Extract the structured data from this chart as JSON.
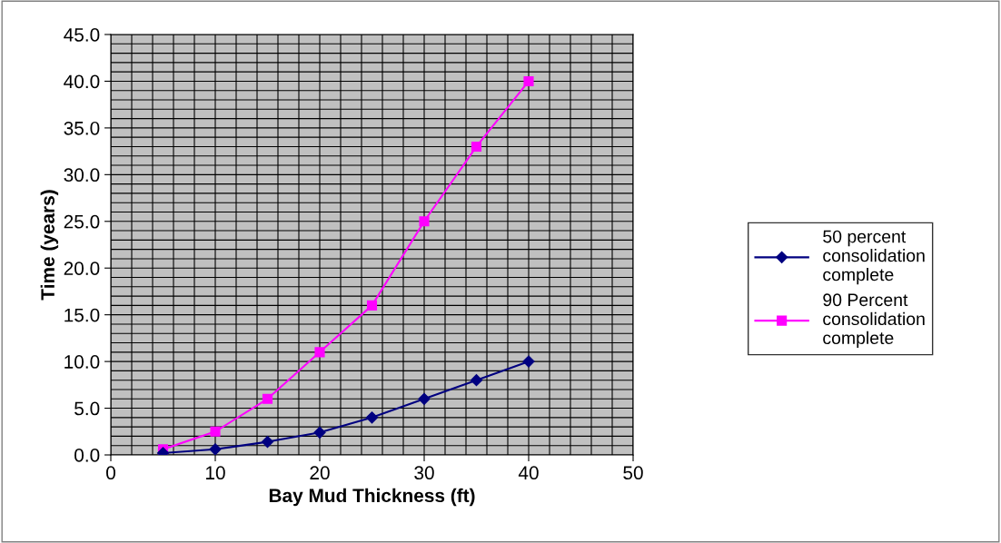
{
  "chart_data": {
    "type": "line",
    "xlabel": "Bay Mud Thickness (ft)",
    "ylabel": "Time (years)",
    "x": [
      5,
      10,
      15,
      20,
      25,
      30,
      35,
      40
    ],
    "series": [
      {
        "name": "50 percent consolidation complete",
        "color": "#000080",
        "marker": "diamond",
        "values": [
          0.2,
          0.6,
          1.4,
          2.4,
          4.0,
          6.0,
          8.0,
          10.0
        ]
      },
      {
        "name": "90 Percent consolidation complete",
        "color": "#ff00ff",
        "marker": "square",
        "values": [
          0.6,
          2.5,
          6.0,
          11.0,
          16.0,
          25.0,
          33.0,
          40.0
        ]
      }
    ],
    "xlim": [
      0,
      50
    ],
    "xticks": [
      0,
      10,
      20,
      30,
      40,
      50
    ],
    "ylim": [
      0,
      45
    ],
    "yticks": [
      {
        "value": 0,
        "label": "0.0"
      },
      {
        "value": 5,
        "label": "5.0"
      },
      {
        "value": 10,
        "label": "10.0"
      },
      {
        "value": 15,
        "label": "15.0"
      },
      {
        "value": 20,
        "label": "20.0"
      },
      {
        "value": 25,
        "label": "25.0"
      },
      {
        "value": 30,
        "label": "30.0"
      },
      {
        "value": 35,
        "label": "35.0"
      },
      {
        "value": 40,
        "label": "40.0"
      },
      {
        "value": 45,
        "label": "45.0"
      }
    ],
    "grid": true,
    "legend": "right",
    "line_style": "solid"
  }
}
